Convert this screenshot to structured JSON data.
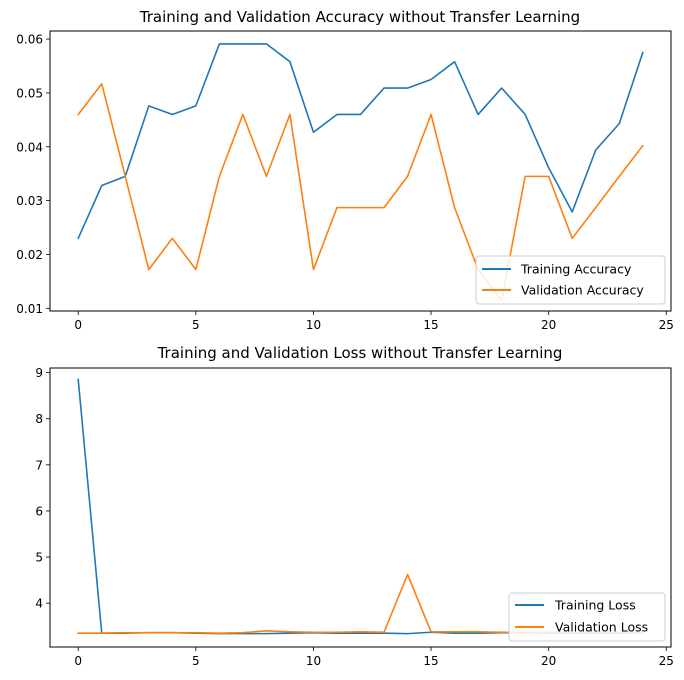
{
  "chart_data": [
    {
      "type": "line",
      "title": "Training and Validation Accuracy without Transfer Learning",
      "xlim": [
        -1.2,
        25.2
      ],
      "ylim": [
        0.0095,
        0.0615
      ],
      "xticks": [
        0,
        5,
        10,
        15,
        20,
        25
      ],
      "xtick_labels": [
        "0",
        "5",
        "10",
        "15",
        "20",
        "25"
      ],
      "yticks": [
        0.01,
        0.02,
        0.03,
        0.04,
        0.05,
        0.06
      ],
      "ytick_labels": [
        "0.01",
        "0.02",
        "0.03",
        "0.04",
        "0.05",
        "0.06"
      ],
      "legend_position": "lower-right",
      "x": [
        0,
        1,
        2,
        3,
        4,
        5,
        6,
        7,
        8,
        9,
        10,
        11,
        12,
        13,
        14,
        15,
        16,
        17,
        18,
        19,
        20,
        21,
        22,
        23,
        24
      ],
      "series": [
        {
          "name": "Training Accuracy",
          "color": "#1f77b4",
          "values": [
            0.023,
            0.0328,
            0.0345,
            0.0476,
            0.046,
            0.0476,
            0.0591,
            0.0591,
            0.0591,
            0.0558,
            0.0427,
            0.046,
            0.046,
            0.0509,
            0.0509,
            0.0525,
            0.0558,
            0.046,
            0.0509,
            0.046,
            0.0361,
            0.0279,
            0.0394,
            0.0443,
            0.0575
          ]
        },
        {
          "name": "Validation Accuracy",
          "color": "#ff7f0e",
          "values": [
            0.046,
            0.0517,
            0.0345,
            0.0172,
            0.023,
            0.0172,
            0.0345,
            0.046,
            0.0345,
            0.046,
            0.0172,
            0.0287,
            0.0287,
            0.0287,
            0.0345,
            0.046,
            0.0287,
            0.0172,
            0.0115,
            0.0345,
            0.0345,
            0.023,
            0.0287,
            0.0345,
            0.0402
          ]
        }
      ]
    },
    {
      "type": "line",
      "title": "Training and Validation Loss without Transfer Learning",
      "xlim": [
        -1.2,
        25.2
      ],
      "ylim": [
        3.05,
        9.1
      ],
      "xticks": [
        0,
        5,
        10,
        15,
        20,
        25
      ],
      "xtick_labels": [
        "0",
        "5",
        "10",
        "15",
        "20",
        "25"
      ],
      "yticks": [
        4,
        5,
        6,
        7,
        8,
        9
      ],
      "ytick_labels": [
        "4",
        "5",
        "6",
        "7",
        "8",
        "9"
      ],
      "legend_position": "lower-right",
      "x": [
        0,
        1,
        2,
        3,
        4,
        5,
        6,
        7,
        8,
        9,
        10,
        11,
        12,
        13,
        14,
        15,
        16,
        17,
        18,
        19,
        20,
        21,
        22,
        23,
        24
      ],
      "series": [
        {
          "name": "Training Loss",
          "color": "#1f77b4",
          "values": [
            8.85,
            3.35,
            3.35,
            3.36,
            3.36,
            3.35,
            3.34,
            3.34,
            3.34,
            3.35,
            3.36,
            3.35,
            3.35,
            3.35,
            3.34,
            3.37,
            3.35,
            3.35,
            3.36,
            3.36,
            3.35,
            3.35,
            3.35,
            3.35,
            3.36
          ]
        },
        {
          "name": "Validation Loss",
          "color": "#ff7f0e",
          "values": [
            3.35,
            3.35,
            3.36,
            3.36,
            3.36,
            3.36,
            3.35,
            3.36,
            3.4,
            3.38,
            3.37,
            3.37,
            3.38,
            3.37,
            4.62,
            3.38,
            3.38,
            3.38,
            3.37,
            3.37,
            3.37,
            3.37,
            3.37,
            3.37,
            3.37
          ]
        }
      ]
    }
  ]
}
